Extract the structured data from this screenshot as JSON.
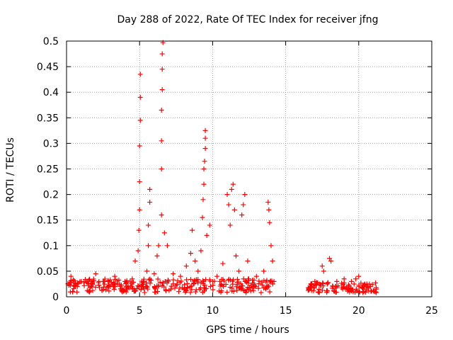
{
  "chart_data": {
    "type": "scatter",
    "title": "Day 288 of 2022, Rate Of TEC Index for receiver jfng",
    "xlabel": "GPS time / hours",
    "ylabel": "ROTI / TECUs",
    "xlim": [
      0,
      25
    ],
    "ylim": [
      0,
      0.5
    ],
    "xticks": [
      0,
      5,
      10,
      15,
      20,
      25
    ],
    "yticks": [
      0,
      0.05,
      0.1,
      0.15,
      0.2,
      0.25,
      0.3,
      0.35,
      0.4,
      0.45,
      0.5
    ],
    "grid": true,
    "legend": "none",
    "marker": "+",
    "colors": {
      "series": "#ff0000",
      "grid": "#a0a0a0",
      "frame": "#000000"
    },
    "series": [
      {
        "values": [
          {
            "x": 0.2,
            "y": 0.025
          },
          {
            "x": 0.3,
            "y": 0.04
          },
          {
            "x": 0.6,
            "y": 0.02
          },
          {
            "x": 1.0,
            "y": 0.03
          },
          {
            "x": 1.5,
            "y": 0.025
          },
          {
            "x": 2.0,
            "y": 0.045
          },
          {
            "x": 2.5,
            "y": 0.03
          },
          {
            "x": 3.0,
            "y": 0.02
          },
          {
            "x": 3.3,
            "y": 0.04
          },
          {
            "x": 4.0,
            "y": 0.03
          },
          {
            "x": 4.5,
            "y": 0.035
          },
          {
            "x": 4.7,
            "y": 0.07
          },
          {
            "x": 4.9,
            "y": 0.09
          },
          {
            "x": 4.95,
            "y": 0.13
          },
          {
            "x": 5.0,
            "y": 0.17
          },
          {
            "x": 5.0,
            "y": 0.225
          },
          {
            "x": 5.0,
            "y": 0.295
          },
          {
            "x": 5.05,
            "y": 0.345
          },
          {
            "x": 5.05,
            "y": 0.39
          },
          {
            "x": 5.05,
            "y": 0.435
          },
          {
            "x": 5.5,
            "y": 0.05
          },
          {
            "x": 5.6,
            "y": 0.1
          },
          {
            "x": 5.6,
            "y": 0.14
          },
          {
            "x": 5.7,
            "y": 0.185
          },
          {
            "x": 5.7,
            "y": 0.21
          },
          {
            "x": 6.0,
            "y": 0.045
          },
          {
            "x": 6.2,
            "y": 0.08
          },
          {
            "x": 6.3,
            "y": 0.1
          },
          {
            "x": 6.5,
            "y": 0.16
          },
          {
            "x": 6.5,
            "y": 0.25
          },
          {
            "x": 6.5,
            "y": 0.305
          },
          {
            "x": 6.5,
            "y": 0.365
          },
          {
            "x": 6.55,
            "y": 0.405
          },
          {
            "x": 6.55,
            "y": 0.445
          },
          {
            "x": 6.55,
            "y": 0.475
          },
          {
            "x": 6.6,
            "y": 0.497
          },
          {
            "x": 6.7,
            "y": 0.125
          },
          {
            "x": 6.9,
            "y": 0.1
          },
          {
            "x": 7.3,
            "y": 0.045
          },
          {
            "x": 7.8,
            "y": 0.04
          },
          {
            "x": 8.2,
            "y": 0.06
          },
          {
            "x": 8.5,
            "y": 0.085
          },
          {
            "x": 8.6,
            "y": 0.13
          },
          {
            "x": 8.8,
            "y": 0.07
          },
          {
            "x": 9.0,
            "y": 0.05
          },
          {
            "x": 9.2,
            "y": 0.09
          },
          {
            "x": 9.3,
            "y": 0.155
          },
          {
            "x": 9.35,
            "y": 0.19
          },
          {
            "x": 9.4,
            "y": 0.22
          },
          {
            "x": 9.4,
            "y": 0.25
          },
          {
            "x": 9.45,
            "y": 0.265
          },
          {
            "x": 9.5,
            "y": 0.29
          },
          {
            "x": 9.5,
            "y": 0.31
          },
          {
            "x": 9.5,
            "y": 0.325
          },
          {
            "x": 9.6,
            "y": 0.12
          },
          {
            "x": 9.8,
            "y": 0.14
          },
          {
            "x": 10.3,
            "y": 0.04
          },
          {
            "x": 10.7,
            "y": 0.065
          },
          {
            "x": 11.0,
            "y": 0.2
          },
          {
            "x": 11.1,
            "y": 0.18
          },
          {
            "x": 11.2,
            "y": 0.14
          },
          {
            "x": 11.3,
            "y": 0.21
          },
          {
            "x": 11.4,
            "y": 0.22
          },
          {
            "x": 11.5,
            "y": 0.17
          },
          {
            "x": 11.6,
            "y": 0.08
          },
          {
            "x": 11.8,
            "y": 0.05
          },
          {
            "x": 12.0,
            "y": 0.16
          },
          {
            "x": 12.1,
            "y": 0.18
          },
          {
            "x": 12.2,
            "y": 0.2
          },
          {
            "x": 12.4,
            "y": 0.07
          },
          {
            "x": 13.0,
            "y": 0.04
          },
          {
            "x": 13.5,
            "y": 0.05
          },
          {
            "x": 13.8,
            "y": 0.185
          },
          {
            "x": 13.85,
            "y": 0.17
          },
          {
            "x": 13.9,
            "y": 0.145
          },
          {
            "x": 14.0,
            "y": 0.1
          },
          {
            "x": 14.1,
            "y": 0.07
          },
          {
            "x": 14.2,
            "y": 0.03
          },
          {
            "x": 16.7,
            "y": 0.02
          },
          {
            "x": 17.0,
            "y": 0.03
          },
          {
            "x": 17.3,
            "y": 0.025
          },
          {
            "x": 17.5,
            "y": 0.06
          },
          {
            "x": 17.6,
            "y": 0.05
          },
          {
            "x": 18.0,
            "y": 0.075
          },
          {
            "x": 18.1,
            "y": 0.07
          },
          {
            "x": 18.5,
            "y": 0.03
          },
          {
            "x": 19.0,
            "y": 0.035
          },
          {
            "x": 19.5,
            "y": 0.03
          },
          {
            "x": 19.8,
            "y": 0.035
          },
          {
            "x": 20.0,
            "y": 0.04
          },
          {
            "x": 20.4,
            "y": 0.025
          },
          {
            "x": 20.8,
            "y": 0.02
          },
          {
            "x": 21.2,
            "y": 0.015
          }
        ],
        "background_band": [
          {
            "x_start": 0.0,
            "x_end": 14.2,
            "y_min": 0.008,
            "y_max": 0.035
          },
          {
            "x_start": 16.5,
            "x_end": 21.2,
            "y_min": 0.008,
            "y_max": 0.028
          }
        ]
      }
    ]
  }
}
